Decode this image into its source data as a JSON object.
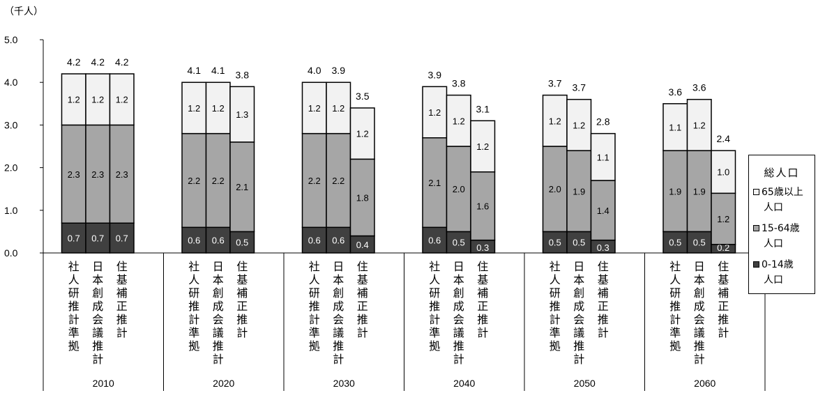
{
  "unit_label": "（千人）",
  "chart_data": {
    "type": "bar",
    "stacked": true,
    "groups": [
      "2010",
      "2020",
      "2030",
      "2040",
      "2050",
      "2060"
    ],
    "methods": [
      "社人研推計準拠",
      "日本創成会議推計",
      "住基補正推計"
    ],
    "ylim": [
      0,
      5
    ],
    "yticks": [
      "0.0",
      "1.0",
      "2.0",
      "3.0",
      "4.0",
      "5.0"
    ],
    "series": [
      {
        "name": "0-14歳人口",
        "color": "#404040",
        "values": [
          [
            0.7,
            0.7,
            0.7
          ],
          [
            0.6,
            0.6,
            0.5
          ],
          [
            0.6,
            0.6,
            0.4
          ],
          [
            0.6,
            0.5,
            0.3
          ],
          [
            0.5,
            0.5,
            0.3
          ],
          [
            0.5,
            0.5,
            0.2
          ]
        ]
      },
      {
        "name": "15-64歳人口",
        "color": "#a6a6a6",
        "values": [
          [
            2.3,
            2.3,
            2.3
          ],
          [
            2.2,
            2.2,
            2.1
          ],
          [
            2.2,
            2.2,
            1.8
          ],
          [
            2.1,
            2.0,
            1.6
          ],
          [
            2.0,
            1.9,
            1.4
          ],
          [
            1.9,
            1.9,
            1.2
          ]
        ]
      },
      {
        "name": "65歳以上人口",
        "color": "#f2f2f2",
        "values": [
          [
            1.2,
            1.2,
            1.2
          ],
          [
            1.2,
            1.2,
            1.3
          ],
          [
            1.2,
            1.2,
            1.2
          ],
          [
            1.2,
            1.2,
            1.2
          ],
          [
            1.2,
            1.2,
            1.1
          ],
          [
            1.1,
            1.2,
            1.0
          ]
        ]
      }
    ],
    "totals": [
      [
        4.2,
        4.2,
        4.2
      ],
      [
        4.1,
        4.1,
        3.8
      ],
      [
        4.0,
        3.9,
        3.5
      ],
      [
        3.9,
        3.8,
        3.1
      ],
      [
        3.7,
        3.7,
        2.8
      ],
      [
        3.6,
        3.6,
        2.4
      ]
    ],
    "legend": {
      "title": "総人口",
      "items": [
        {
          "line1": "65歳以上",
          "line2": "人口",
          "color": "#f2f2f2"
        },
        {
          "line1": "15-64歳",
          "line2": "人口",
          "color": "#a6a6a6"
        },
        {
          "line1": "0-14歳",
          "line2": "人口",
          "color": "#404040"
        }
      ]
    }
  }
}
